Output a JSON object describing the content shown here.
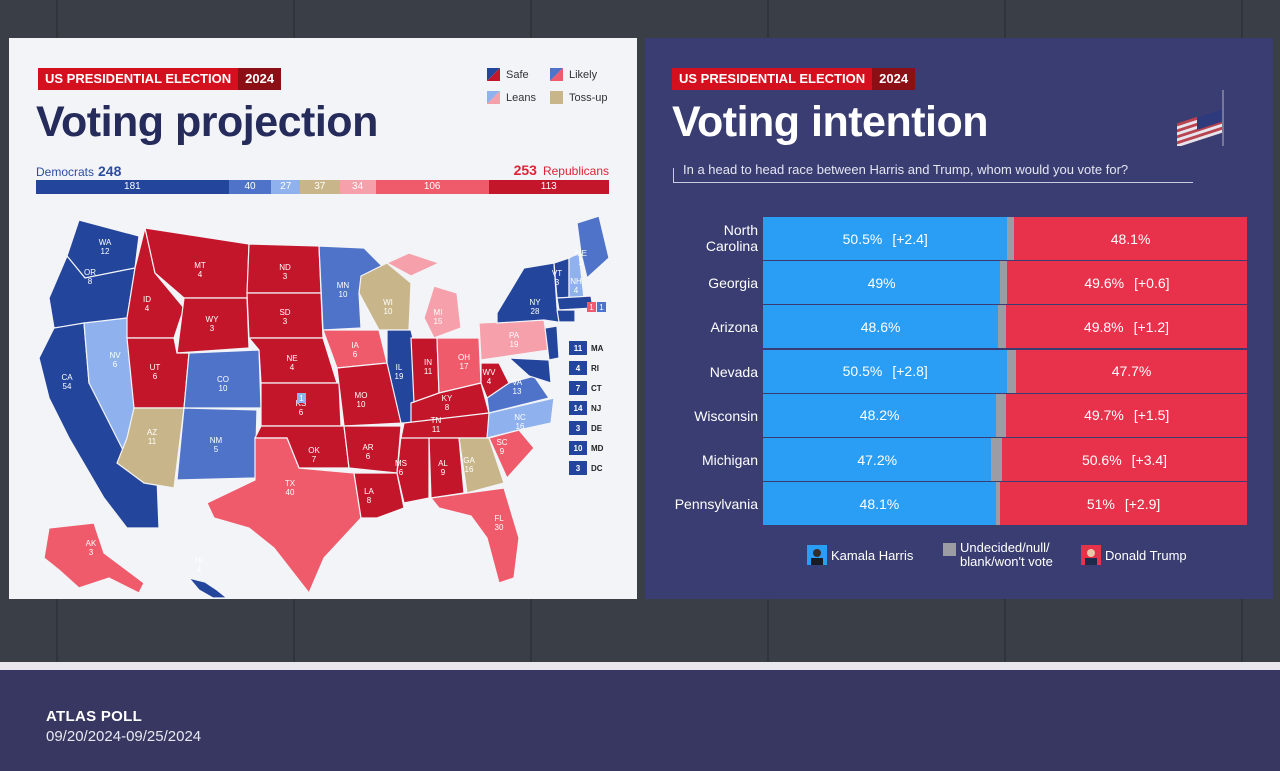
{
  "left_panel": {
    "tag_left": "US PRESIDENTIAL ELECTION",
    "tag_year": "2024",
    "title": "Voting projection",
    "legend": [
      {
        "label": "Safe",
        "color": "#c4162a"
      },
      {
        "label": "Likely",
        "color": "#4f73c9"
      },
      {
        "label": "Leans",
        "color": "#f28e9b"
      },
      {
        "label": "Toss-up",
        "color": "#c8b68a"
      }
    ],
    "democrats_label": "Democrats",
    "democrats_total": "248",
    "republicans_label": "Republicans",
    "republicans_total": "253",
    "seat_bar": [
      {
        "value": 181,
        "label": "181",
        "color": "#23459c"
      },
      {
        "value": 40,
        "label": "40",
        "color": "#4f73c9"
      },
      {
        "value": 27,
        "label": "27",
        "color": "#8fb2ef"
      },
      {
        "value": 37,
        "label": "37",
        "color": "#c8b68a"
      },
      {
        "value": 34,
        "label": "34",
        "color": "#f5a0aa"
      },
      {
        "value": 106,
        "label": "106",
        "color": "#ef5b6b"
      },
      {
        "value": 113,
        "label": "113",
        "color": "#c4162a"
      }
    ],
    "map_states": [
      {
        "abbr": "WA",
        "ev": "12"
      },
      {
        "abbr": "OR",
        "ev": "8"
      },
      {
        "abbr": "CA",
        "ev": "54"
      },
      {
        "abbr": "NV",
        "ev": "6"
      },
      {
        "abbr": "ID",
        "ev": "4"
      },
      {
        "abbr": "MT",
        "ev": "4"
      },
      {
        "abbr": "WY",
        "ev": "3"
      },
      {
        "abbr": "UT",
        "ev": "6"
      },
      {
        "abbr": "AZ",
        "ev": "11"
      },
      {
        "abbr": "CO",
        "ev": "10"
      },
      {
        "abbr": "NM",
        "ev": "5"
      },
      {
        "abbr": "ND",
        "ev": "3"
      },
      {
        "abbr": "SD",
        "ev": "3"
      },
      {
        "abbr": "NE",
        "ev": "4"
      },
      {
        "abbr": "KS",
        "ev": "6"
      },
      {
        "abbr": "OK",
        "ev": "7"
      },
      {
        "abbr": "TX",
        "ev": "40"
      },
      {
        "abbr": "MN",
        "ev": "10"
      },
      {
        "abbr": "IA",
        "ev": "6"
      },
      {
        "abbr": "MO",
        "ev": "10"
      },
      {
        "abbr": "AR",
        "ev": "6"
      },
      {
        "abbr": "LA",
        "ev": "8"
      },
      {
        "abbr": "WI",
        "ev": "10"
      },
      {
        "abbr": "IL",
        "ev": "19"
      },
      {
        "abbr": "MS",
        "ev": "6"
      },
      {
        "abbr": "MI",
        "ev": "15"
      },
      {
        "abbr": "IN",
        "ev": "11"
      },
      {
        "abbr": "KY",
        "ev": "8"
      },
      {
        "abbr": "TN",
        "ev": "11"
      },
      {
        "abbr": "AL",
        "ev": "9"
      },
      {
        "abbr": "OH",
        "ev": "17"
      },
      {
        "abbr": "GA",
        "ev": "16"
      },
      {
        "abbr": "FL",
        "ev": "30"
      },
      {
        "abbr": "SC",
        "ev": "9"
      },
      {
        "abbr": "NC",
        "ev": "16"
      },
      {
        "abbr": "VA",
        "ev": "13"
      },
      {
        "abbr": "WV",
        "ev": "4"
      },
      {
        "abbr": "PA",
        "ev": "19"
      },
      {
        "abbr": "NY",
        "ev": "28"
      },
      {
        "abbr": "VT",
        "ev": "3"
      },
      {
        "abbr": "NH",
        "ev": "4"
      },
      {
        "abbr": "ME",
        "ev": "2"
      },
      {
        "abbr": "AK",
        "ev": "3"
      },
      {
        "abbr": "HI",
        "ev": "4"
      }
    ],
    "map_extra": {
      "ne_district": "1",
      "me_district_a": "1",
      "me_district_b": "1"
    },
    "small_states": [
      {
        "ev": "11",
        "abbr": "MA"
      },
      {
        "ev": "4",
        "abbr": "RI"
      },
      {
        "ev": "7",
        "abbr": "CT"
      },
      {
        "ev": "14",
        "abbr": "NJ"
      },
      {
        "ev": "3",
        "abbr": "DE"
      },
      {
        "ev": "10",
        "abbr": "MD"
      },
      {
        "ev": "3",
        "abbr": "DC"
      }
    ]
  },
  "right_panel": {
    "tag_left": "US PRESIDENTIAL ELECTION",
    "tag_year": "2024",
    "title": "Voting intention",
    "question": "In a head to head race between Harris and Trump, whom would you vote for?",
    "legend": {
      "harris": "Kamala Harris",
      "undecided_line1": "Undecided/null/",
      "undecided_line2": "blank/won't vote",
      "trump": "Donald Trump"
    },
    "colors": {
      "harris": "#2a9df4",
      "undecided": "#9c9ca4",
      "trump": "#e8314a"
    }
  },
  "chart_data": {
    "type": "bar",
    "orientation": "horizontal-stacked",
    "categories": [
      "North Carolina",
      "Georgia",
      "Arizona",
      "Nevada",
      "Wisconsin",
      "Michigan",
      "Pennsylvania"
    ],
    "series": [
      {
        "name": "Kamala Harris",
        "values": [
          50.5,
          49,
          48.6,
          50.5,
          48.2,
          47.2,
          48.1
        ],
        "labels": [
          "50.5%",
          "49%",
          "48.6%",
          "50.5%",
          "48.2%",
          "47.2%",
          "48.1%"
        ],
        "leads": [
          "[+2.4]",
          "",
          "",
          "[+2.8]",
          "",
          "",
          ""
        ]
      },
      {
        "name": "Undecided/null/blank/won't vote",
        "values": [
          1.4,
          1.4,
          1.6,
          1.8,
          2.1,
          2.2,
          0.9
        ]
      },
      {
        "name": "Donald Trump",
        "values": [
          48.1,
          49.6,
          49.8,
          47.7,
          49.7,
          50.6,
          51
        ],
        "labels": [
          "48.1%",
          "49.6%",
          "49.8%",
          "47.7%",
          "49.7%",
          "50.6%",
          "51%"
        ],
        "leads": [
          "",
          "[+0.6]",
          "[+1.2]",
          "",
          "[+1.5]",
          "[+3.4]",
          "[+2.9]"
        ]
      }
    ]
  },
  "footer": {
    "source": "ATLAS POLL",
    "dates": "09/20/2024-09/25/2024"
  }
}
